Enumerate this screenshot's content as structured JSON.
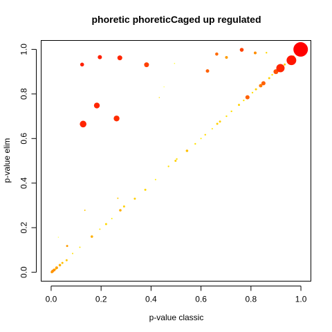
{
  "chart_data": {
    "type": "scatter",
    "title": "phoretic phoreticCaged up regulated",
    "xlabel": "p-value classic",
    "ylabel": "p-value elim",
    "xlim": [
      -0.04,
      1.04
    ],
    "ylim": [
      -0.04,
      1.04
    ],
    "xticks": [
      {
        "value": 0.0,
        "label": "0.0"
      },
      {
        "value": 0.2,
        "label": "0.2"
      },
      {
        "value": 0.4,
        "label": "0.4"
      },
      {
        "value": 0.6,
        "label": "0.6"
      },
      {
        "value": 0.8,
        "label": "0.8"
      },
      {
        "value": 1.0,
        "label": "1.0"
      }
    ],
    "yticks": [
      {
        "value": 0.0,
        "label": "0.0"
      },
      {
        "value": 0.2,
        "label": "0.2"
      },
      {
        "value": 0.4,
        "label": "0.4"
      },
      {
        "value": 0.6,
        "label": "0.6"
      },
      {
        "value": 0.8,
        "label": "0.8"
      },
      {
        "value": 1.0,
        "label": "1.0"
      }
    ],
    "grid": false,
    "legend": "none",
    "color_scale": [
      "#ffff00",
      "#ffd700",
      "#ffa500",
      "#ff6a00",
      "#ff2000",
      "#ff0000"
    ],
    "points": [
      {
        "x": 0.999,
        "y": 1.0,
        "size": 10.5,
        "color": "#ff0000"
      },
      {
        "x": 0.962,
        "y": 0.951,
        "size": 7.0,
        "color": "#ff1500"
      },
      {
        "x": 0.918,
        "y": 0.916,
        "size": 6.0,
        "color": "#ff2600"
      },
      {
        "x": 0.9,
        "y": 0.9,
        "size": 3.5,
        "color": "#ff5000"
      },
      {
        "x": 0.85,
        "y": 0.848,
        "size": 3.0,
        "color": "#ff6000"
      },
      {
        "x": 0.839,
        "y": 0.837,
        "size": 2.5,
        "color": "#ff7a00"
      },
      {
        "x": 0.786,
        "y": 0.785,
        "size": 3.0,
        "color": "#ff6000"
      },
      {
        "x": 0.128,
        "y": 0.665,
        "size": 4.8,
        "color": "#ff2400"
      },
      {
        "x": 0.183,
        "y": 0.748,
        "size": 4.2,
        "color": "#ff2600"
      },
      {
        "x": 0.262,
        "y": 0.69,
        "size": 4.2,
        "color": "#ff2c00"
      },
      {
        "x": 0.124,
        "y": 0.932,
        "size": 2.8,
        "color": "#ff2000"
      },
      {
        "x": 0.195,
        "y": 0.965,
        "size": 3.0,
        "color": "#ff2000"
      },
      {
        "x": 0.275,
        "y": 0.962,
        "size": 3.5,
        "color": "#ff2600"
      },
      {
        "x": 0.382,
        "y": 0.931,
        "size": 3.5,
        "color": "#ff4000"
      },
      {
        "x": 0.626,
        "y": 0.903,
        "size": 2.5,
        "color": "#ff6000"
      },
      {
        "x": 0.663,
        "y": 0.979,
        "size": 2.3,
        "color": "#ff6a00"
      },
      {
        "x": 0.702,
        "y": 0.964,
        "size": 2.0,
        "color": "#ff9c00"
      },
      {
        "x": 0.763,
        "y": 0.998,
        "size": 2.8,
        "color": "#ff4200"
      },
      {
        "x": 0.817,
        "y": 0.984,
        "size": 2.0,
        "color": "#ff8c00"
      },
      {
        "x": 0.862,
        "y": 0.985,
        "size": 1.2,
        "color": "#ffd700"
      },
      {
        "x": 0.494,
        "y": 0.937,
        "size": 0.8,
        "color": "#ffff33"
      },
      {
        "x": 0.452,
        "y": 0.832,
        "size": 0.8,
        "color": "#ffff66"
      },
      {
        "x": 0.433,
        "y": 0.784,
        "size": 0.8,
        "color": "#ffe000"
      },
      {
        "x": 0.135,
        "y": 0.278,
        "size": 1.0,
        "color": "#ffc800"
      },
      {
        "x": 0.267,
        "y": 0.332,
        "size": 1.0,
        "color": "#ffc800"
      },
      {
        "x": 0.277,
        "y": 0.278,
        "size": 1.8,
        "color": "#ffb000"
      },
      {
        "x": 0.292,
        "y": 0.295,
        "size": 1.5,
        "color": "#ffd000"
      },
      {
        "x": 0.335,
        "y": 0.33,
        "size": 1.5,
        "color": "#ffd000"
      },
      {
        "x": 0.377,
        "y": 0.37,
        "size": 1.5,
        "color": "#ffd700"
      },
      {
        "x": 0.22,
        "y": 0.216,
        "size": 1.5,
        "color": "#ffd700"
      },
      {
        "x": 0.163,
        "y": 0.16,
        "size": 1.8,
        "color": "#ffb000"
      },
      {
        "x": 0.064,
        "y": 0.118,
        "size": 1.5,
        "color": "#ff9c00"
      },
      {
        "x": 0.029,
        "y": 0.157,
        "size": 0.8,
        "color": "#ffff66"
      },
      {
        "x": 0.062,
        "y": 0.054,
        "size": 1.5,
        "color": "#ffc800"
      },
      {
        "x": 0.045,
        "y": 0.042,
        "size": 1.5,
        "color": "#ffc000"
      },
      {
        "x": 0.035,
        "y": 0.032,
        "size": 1.8,
        "color": "#ffb000"
      },
      {
        "x": 0.022,
        "y": 0.02,
        "size": 2.0,
        "color": "#ffa000"
      },
      {
        "x": 0.012,
        "y": 0.01,
        "size": 2.0,
        "color": "#ff9000"
      },
      {
        "x": 0.006,
        "y": 0.005,
        "size": 2.0,
        "color": "#ff9000"
      },
      {
        "x": 0.003,
        "y": 0.001,
        "size": 1.8,
        "color": "#ff9c00"
      },
      {
        "x": 0.018,
        "y": 0.014,
        "size": 1.2,
        "color": "#ffd700"
      },
      {
        "x": 0.086,
        "y": 0.084,
        "size": 1.0,
        "color": "#ffe000"
      },
      {
        "x": 0.115,
        "y": 0.112,
        "size": 1.0,
        "color": "#ffe600"
      },
      {
        "x": 0.195,
        "y": 0.193,
        "size": 1.0,
        "color": "#ffe600"
      },
      {
        "x": 0.243,
        "y": 0.241,
        "size": 1.0,
        "color": "#ffee00"
      },
      {
        "x": 0.418,
        "y": 0.416,
        "size": 1.0,
        "color": "#ffee00"
      },
      {
        "x": 0.47,
        "y": 0.475,
        "size": 1.2,
        "color": "#ffe000"
      },
      {
        "x": 0.498,
        "y": 0.5,
        "size": 1.5,
        "color": "#ffd000"
      },
      {
        "x": 0.503,
        "y": 0.508,
        "size": 1.2,
        "color": "#ffe000"
      },
      {
        "x": 0.544,
        "y": 0.545,
        "size": 1.8,
        "color": "#ffc000"
      },
      {
        "x": 0.577,
        "y": 0.576,
        "size": 1.2,
        "color": "#ffe000"
      },
      {
        "x": 0.6,
        "y": 0.6,
        "size": 1.0,
        "color": "#ffee00"
      },
      {
        "x": 0.617,
        "y": 0.617,
        "size": 1.2,
        "color": "#ffd700"
      },
      {
        "x": 0.645,
        "y": 0.644,
        "size": 1.0,
        "color": "#ffe600"
      },
      {
        "x": 0.665,
        "y": 0.666,
        "size": 1.5,
        "color": "#ffd000"
      },
      {
        "x": 0.676,
        "y": 0.676,
        "size": 1.5,
        "color": "#ffd000"
      },
      {
        "x": 0.702,
        "y": 0.7,
        "size": 1.2,
        "color": "#ffe000"
      },
      {
        "x": 0.722,
        "y": 0.722,
        "size": 1.2,
        "color": "#ffe000"
      },
      {
        "x": 0.752,
        "y": 0.751,
        "size": 1.5,
        "color": "#ffd000"
      },
      {
        "x": 0.771,
        "y": 0.771,
        "size": 1.2,
        "color": "#ffe000"
      },
      {
        "x": 0.806,
        "y": 0.806,
        "size": 1.2,
        "color": "#ffe000"
      },
      {
        "x": 0.82,
        "y": 0.821,
        "size": 1.5,
        "color": "#ffd000"
      },
      {
        "x": 0.873,
        "y": 0.871,
        "size": 1.5,
        "color": "#ffd000"
      },
      {
        "x": 0.885,
        "y": 0.886,
        "size": 1.2,
        "color": "#ffe000"
      },
      {
        "x": 0.935,
        "y": 0.932,
        "size": 1.5,
        "color": "#ffc800"
      },
      {
        "x": 0.97,
        "y": 0.968,
        "size": 1.5,
        "color": "#ffd000"
      },
      {
        "x": 0.984,
        "y": 0.985,
        "size": 1.5,
        "color": "#ffc800"
      }
    ]
  }
}
